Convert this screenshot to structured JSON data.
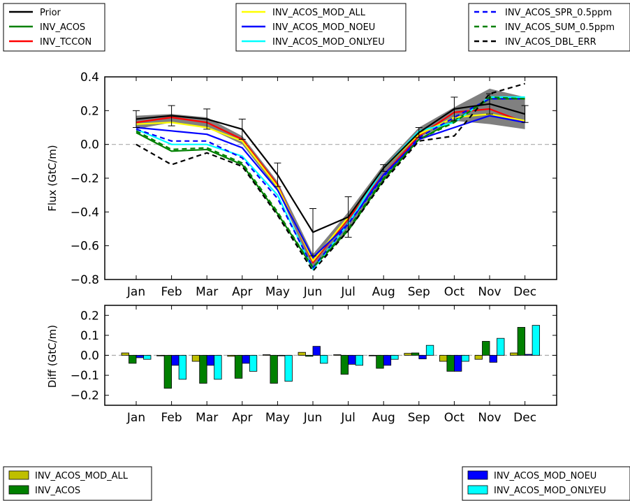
{
  "chart_data": [
    {
      "type": "line",
      "ylabel": "Flux (GtC/m)",
      "xlabel": "",
      "ylim": [
        -0.8,
        0.4
      ],
      "yticks": [
        "0.4",
        "0.2",
        "0.0",
        "−0.2",
        "−0.4",
        "−0.6",
        "−0.8"
      ],
      "ytick_values": [
        0.4,
        0.2,
        0.0,
        -0.2,
        -0.4,
        -0.6,
        -0.8
      ],
      "categories": [
        "Jan",
        "Feb",
        "Mar",
        "Apr",
        "May",
        "Jun",
        "Jul",
        "Aug",
        "Sep",
        "Oct",
        "Nov",
        "Dec"
      ],
      "band": {
        "color": "#808080",
        "lower": [
          0.09,
          0.13,
          0.1,
          0.0,
          -0.27,
          -0.74,
          -0.5,
          -0.22,
          0.04,
          0.14,
          0.12,
          0.09
        ],
        "upper": [
          0.17,
          0.18,
          0.16,
          0.05,
          -0.22,
          -0.65,
          -0.4,
          -0.12,
          0.1,
          0.22,
          0.33,
          0.28
        ]
      },
      "series": [
        {
          "name": "Prior",
          "color": "#000000",
          "dash": "solid",
          "values": [
            0.15,
            0.17,
            0.15,
            0.09,
            -0.18,
            -0.52,
            -0.43,
            -0.14,
            0.07,
            0.21,
            0.24,
            0.18
          ],
          "err": [
            0.05,
            0.06,
            0.06,
            0.06,
            0.07,
            0.14,
            0.12,
            0.02,
            0.03,
            0.07,
            0.06,
            0.05
          ]
        },
        {
          "name": "INV_ACOS",
          "color": "#008000",
          "dash": "solid",
          "values": [
            0.07,
            -0.04,
            -0.03,
            -0.12,
            -0.41,
            -0.73,
            -0.51,
            -0.21,
            0.03,
            0.14,
            0.27,
            0.27
          ]
        },
        {
          "name": "INV_TCCON",
          "color": "#ff0000",
          "dash": "solid",
          "values": [
            0.13,
            0.16,
            0.13,
            0.03,
            -0.24,
            -0.7,
            -0.44,
            -0.18,
            0.05,
            0.19,
            0.21,
            0.13
          ]
        },
        {
          "name": "INV_ACOS_MOD_ALL",
          "color": "#ffff00",
          "dash": "solid",
          "values": [
            0.12,
            0.13,
            0.1,
            0.02,
            -0.25,
            -0.69,
            -0.43,
            -0.14,
            0.06,
            0.16,
            0.18,
            0.14
          ]
        },
        {
          "name": "INV_ACOS_MOD_NOEU",
          "color": "#0000ff",
          "dash": "solid",
          "values": [
            0.1,
            0.08,
            0.06,
            -0.02,
            -0.27,
            -0.67,
            -0.47,
            -0.18,
            0.03,
            0.1,
            0.17,
            0.13
          ]
        },
        {
          "name": "INV_ACOS_MOD_ONLYEU",
          "color": "#00ffff",
          "dash": "solid",
          "values": [
            0.09,
            0.0,
            0.0,
            -0.07,
            -0.3,
            -0.74,
            -0.47,
            -0.14,
            0.08,
            0.13,
            0.28,
            0.28
          ]
        },
        {
          "name": "INV_ACOS_SPR_0.5ppm",
          "color": "#0000ff",
          "dash": "dashed",
          "values": [
            0.09,
            0.02,
            0.02,
            -0.08,
            -0.32,
            -0.73,
            -0.47,
            -0.19,
            0.04,
            0.16,
            0.27,
            0.27
          ]
        },
        {
          "name": "INV_ACOS_SUM_0.5ppm",
          "color": "#008000",
          "dash": "dashed",
          "values": [
            0.08,
            -0.03,
            -0.02,
            -0.11,
            -0.4,
            -0.73,
            -0.5,
            -0.2,
            0.03,
            0.13,
            0.28,
            0.27
          ]
        },
        {
          "name": "INV_ACOS_DBL_ERR",
          "color": "#000000",
          "dash": "dashed",
          "values": [
            0.0,
            -0.12,
            -0.05,
            -0.13,
            -0.42,
            -0.75,
            -0.51,
            -0.22,
            0.02,
            0.05,
            0.3,
            0.36
          ]
        }
      ],
      "reference_line": 0.0,
      "legends": [
        {
          "position": "top-left",
          "entries": [
            {
              "label": "Prior",
              "color": "#000000",
              "dash": "solid"
            },
            {
              "label": "INV_ACOS",
              "color": "#008000",
              "dash": "solid"
            },
            {
              "label": "INV_TCCON",
              "color": "#ff0000",
              "dash": "solid"
            }
          ]
        },
        {
          "position": "top-center",
          "entries": [
            {
              "label": "INV_ACOS_MOD_ALL",
              "color": "#ffff00",
              "dash": "solid"
            },
            {
              "label": "INV_ACOS_MOD_NOEU",
              "color": "#0000ff",
              "dash": "solid"
            },
            {
              "label": "INV_ACOS_MOD_ONLYEU",
              "color": "#00ffff",
              "dash": "solid"
            }
          ]
        },
        {
          "position": "top-right",
          "entries": [
            {
              "label": "INV_ACOS_SPR_0.5ppm",
              "color": "#0000ff",
              "dash": "dashed"
            },
            {
              "label": "INV_ACOS_SUM_0.5ppm",
              "color": "#008000",
              "dash": "dashed"
            },
            {
              "label": "INV_ACOS_DBL_ERR",
              "color": "#000000",
              "dash": "dashed"
            }
          ]
        }
      ]
    },
    {
      "type": "bar",
      "ylabel": "Diff (GtC/m)",
      "xlabel": "",
      "ylim": [
        -0.25,
        0.25
      ],
      "yticks": [
        "0.2",
        "0.1",
        "0.0",
        "−0.1",
        "−0.2"
      ],
      "ytick_values": [
        0.2,
        0.1,
        0.0,
        -0.1,
        -0.2
      ],
      "categories": [
        "Jan",
        "Feb",
        "Mar",
        "Apr",
        "May",
        "Jun",
        "Jul",
        "Aug",
        "Sep",
        "Oct",
        "Nov",
        "Dec"
      ],
      "reference_line": 0.0,
      "series": [
        {
          "name": "INV_ACOS_MOD_ALL",
          "color": "#bfbf00",
          "values": [
            0.012,
            -0.003,
            -0.03,
            -0.005,
            0.003,
            0.015,
            0.003,
            -0.002,
            0.01,
            -0.03,
            -0.02,
            0.012
          ]
        },
        {
          "name": "INV_ACOS",
          "color": "#008000",
          "values": [
            -0.04,
            -0.165,
            -0.14,
            -0.115,
            -0.14,
            -0.005,
            -0.095,
            -0.065,
            0.012,
            -0.08,
            0.07,
            0.14
          ]
        },
        {
          "name": "INV_ACOS_MOD_NOEU",
          "color": "#0000ff",
          "values": [
            -0.012,
            -0.05,
            -0.05,
            -0.04,
            -0.002,
            0.045,
            -0.045,
            -0.05,
            -0.018,
            -0.08,
            -0.035,
            0.005
          ]
        },
        {
          "name": "INV_ACOS_MOD_ONLYEU",
          "color": "#00ffff",
          "values": [
            -0.02,
            -0.12,
            -0.12,
            -0.08,
            -0.13,
            -0.04,
            -0.05,
            -0.02,
            0.05,
            -0.03,
            0.085,
            0.15
          ]
        }
      ],
      "legends": [
        {
          "position": "bottom-left",
          "entries": [
            {
              "label": "INV_ACOS_MOD_ALL",
              "color": "#bfbf00"
            },
            {
              "label": "INV_ACOS",
              "color": "#008000"
            }
          ]
        },
        {
          "position": "bottom-right",
          "entries": [
            {
              "label": "INV_ACOS_MOD_NOEU",
              "color": "#0000ff"
            },
            {
              "label": "INV_ACOS_MOD_ONLYEU",
              "color": "#00ffff"
            }
          ]
        }
      ]
    }
  ]
}
